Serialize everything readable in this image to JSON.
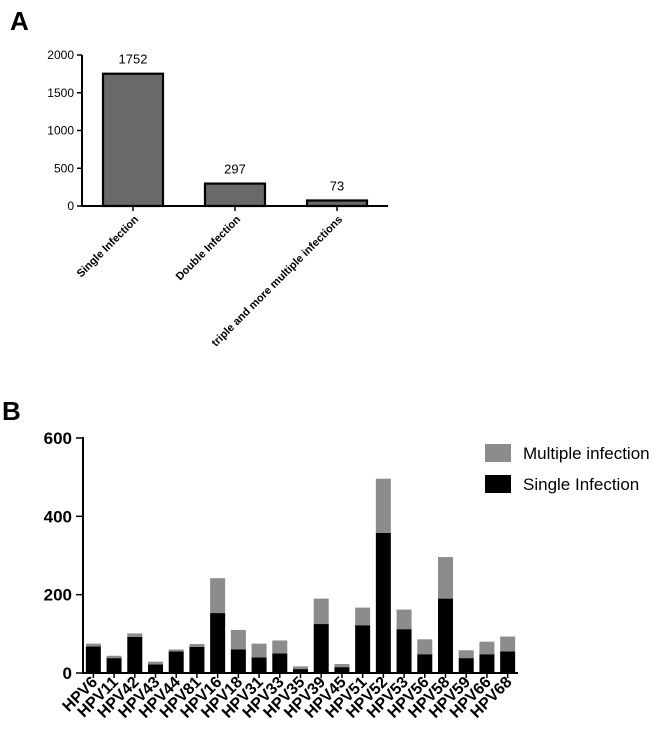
{
  "panels": {
    "a_label": "A",
    "b_label": "B"
  },
  "chart_data": [
    {
      "type": "bar",
      "categories": [
        "Single Infection",
        "Double Infection",
        "triple and more multiple infections"
      ],
      "values": [
        1752,
        297,
        73
      ],
      "data_labels": [
        "1752",
        "297",
        "73"
      ],
      "ylim": [
        0,
        2000
      ],
      "yticks": [
        "0",
        "500",
        "1000",
        "1500",
        "2000"
      ],
      "grid": false
    },
    {
      "type": "bar",
      "stacked": true,
      "categories": [
        "HPV6",
        "HPV11",
        "HPV42",
        "HPV43",
        "HPV44",
        "HPV81",
        "HPV16",
        "HPV18",
        "HPV31",
        "HPV33",
        "HPV35",
        "HPV39",
        "HPV45",
        "HPV51",
        "HPV52",
        "HPV53",
        "HPV56",
        "HPV58",
        "HPV59",
        "HPV66",
        "HPV68"
      ],
      "series": [
        {
          "name": "Single Infection",
          "values": [
            68,
            38,
            92,
            22,
            55,
            67,
            153,
            60,
            40,
            50,
            10,
            125,
            15,
            122,
            358,
            112,
            48,
            190,
            38,
            48,
            55
          ],
          "color": "#000000"
        },
        {
          "name": "Multiple infection",
          "values": [
            7,
            6,
            9,
            7,
            5,
            7,
            89,
            50,
            35,
            33,
            7,
            65,
            8,
            45,
            138,
            50,
            38,
            106,
            20,
            32,
            38
          ],
          "color": "#8c8c8c"
        }
      ],
      "ylim": [
        0,
        600
      ],
      "yticks": [
        "0",
        "200",
        "400",
        "600"
      ],
      "legend": "top-right",
      "grid": false
    }
  ]
}
